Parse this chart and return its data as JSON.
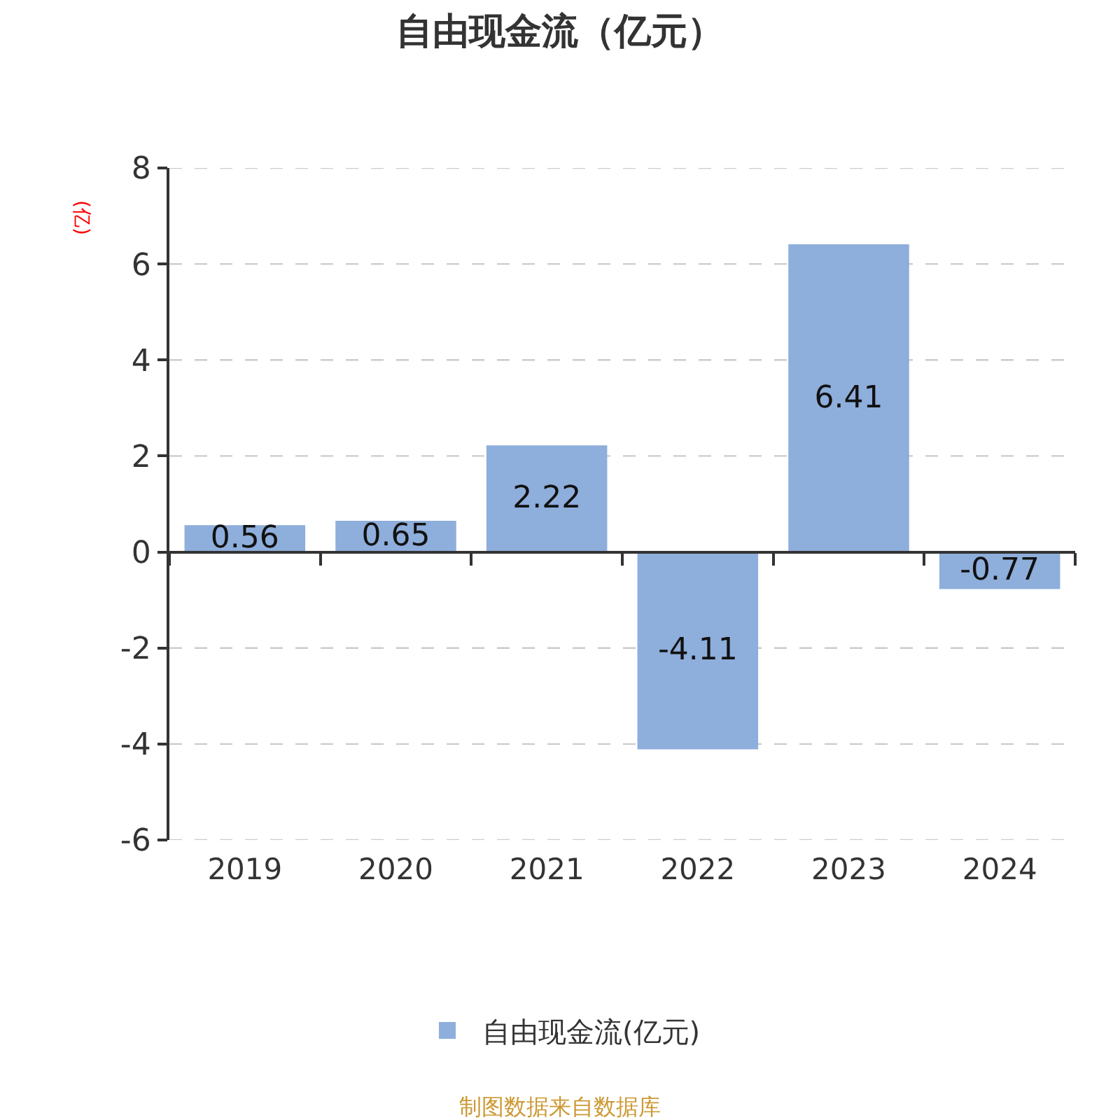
{
  "chart_data": {
    "type": "bar",
    "title": "自由现金流（亿元）",
    "ylabel": "(亿)",
    "categories": [
      "2019",
      "2020",
      "2021",
      "2022",
      "2023",
      "2024"
    ],
    "series": [
      {
        "name": "自由现金流(亿元)",
        "color": "#8eaedb",
        "values": [
          0.56,
          0.65,
          2.22,
          -4.11,
          6.41,
          -0.77
        ]
      }
    ],
    "ylim": [
      -6,
      8
    ],
    "yticks": [
      -6,
      -4,
      -2,
      0,
      2,
      4,
      6,
      8
    ],
    "grid": "y",
    "legend": "bottom",
    "data_labels": true,
    "annotations": [
      "制图数据来自数据库"
    ]
  }
}
